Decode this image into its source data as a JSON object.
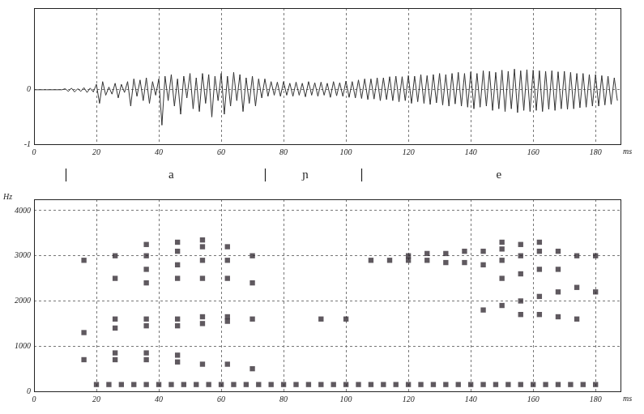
{
  "chart_data": [
    {
      "type": "line",
      "x": [
        0,
        1,
        2,
        3,
        4,
        5,
        6,
        7,
        8,
        9,
        10,
        11,
        12,
        13,
        14,
        15,
        16,
        17,
        18,
        19,
        20,
        21,
        22,
        23,
        24,
        25,
        26,
        27,
        28,
        29,
        30,
        31,
        32,
        33,
        34,
        35,
        36,
        37,
        38,
        39,
        40,
        41,
        42,
        43,
        44,
        45,
        46,
        47,
        48,
        49,
        50,
        51,
        52,
        53,
        54,
        55,
        56,
        57,
        58,
        59,
        60,
        61,
        62,
        63,
        64,
        65,
        66,
        67,
        68,
        69,
        70,
        71,
        72,
        73,
        74,
        75,
        76,
        77,
        78,
        79,
        80,
        81,
        82,
        83,
        84,
        85,
        86,
        87,
        88,
        89,
        90,
        91,
        92,
        93,
        94,
        95,
        96,
        97,
        98,
        99,
        100,
        101,
        102,
        103,
        104,
        105,
        106,
        107,
        108,
        109,
        110,
        111,
        112,
        113,
        114,
        115,
        116,
        117,
        118,
        119,
        120,
        121,
        122,
        123,
        124,
        125,
        126,
        127,
        128,
        129,
        130,
        131,
        132,
        133,
        134,
        135,
        136,
        137,
        138,
        139,
        140,
        141,
        142,
        143,
        144,
        145,
        146,
        147,
        148,
        149,
        150,
        151,
        152,
        153,
        154,
        155,
        156,
        157,
        158,
        159,
        160,
        161,
        162,
        163,
        164,
        165,
        166,
        167,
        168,
        169,
        170,
        171,
        172,
        173,
        174,
        175,
        176,
        177,
        178,
        179,
        180,
        181,
        182,
        183,
        184,
        185,
        186,
        187
      ],
      "values": [
        0,
        0,
        0,
        0,
        0,
        0,
        0,
        0,
        0,
        0,
        0.02,
        -0.03,
        0.03,
        -0.04,
        0.02,
        -0.03,
        0.04,
        -0.05,
        0.03,
        -0.04,
        0.1,
        -0.25,
        0.15,
        -0.1,
        0.05,
        -0.08,
        0.12,
        -0.15,
        0.1,
        -0.05,
        0.15,
        -0.3,
        0.2,
        -0.12,
        0.18,
        -0.2,
        0.22,
        -0.25,
        0.15,
        -0.1,
        0.2,
        -0.65,
        0.25,
        -0.2,
        0.28,
        -0.3,
        0.2,
        -0.45,
        0.25,
        -0.15,
        0.3,
        -0.35,
        0.22,
        -0.4,
        0.3,
        -0.25,
        0.28,
        -0.5,
        0.25,
        -0.2,
        0.3,
        -0.45,
        0.25,
        -0.3,
        0.32,
        -0.2,
        0.28,
        -0.4,
        0.22,
        -0.25,
        0.25,
        -0.3,
        0.2,
        -0.15,
        0.2,
        -0.12,
        0.15,
        -0.1,
        0.14,
        -0.12,
        0.15,
        -0.1,
        0.12,
        -0.12,
        0.14,
        -0.1,
        0.12,
        -0.13,
        0.15,
        -0.1,
        0.13,
        -0.12,
        0.14,
        -0.1,
        0.12,
        -0.14,
        0.15,
        -0.11,
        0.13,
        -0.12,
        0.16,
        -0.14,
        0.15,
        -0.15,
        0.18,
        -0.16,
        0.2,
        -0.18,
        0.2,
        -0.17,
        0.22,
        -0.2,
        0.22,
        -0.18,
        0.24,
        -0.2,
        0.25,
        -0.22,
        0.24,
        -0.2,
        0.26,
        -0.25,
        0.25,
        -0.22,
        0.28,
        -0.25,
        0.26,
        -0.27,
        0.28,
        -0.24,
        0.3,
        -0.28,
        0.28,
        -0.3,
        0.3,
        -0.26,
        0.32,
        -0.3,
        0.3,
        -0.32,
        0.33,
        -0.35,
        0.3,
        -0.32,
        0.35,
        -0.3,
        0.34,
        -0.38,
        0.32,
        -0.35,
        0.36,
        -0.4,
        0.34,
        -0.35,
        0.38,
        -0.42,
        0.35,
        -0.38,
        0.37,
        -0.4,
        0.36,
        -0.38,
        0.35,
        -0.4,
        0.34,
        -0.36,
        0.35,
        -0.38,
        0.33,
        -0.35,
        0.34,
        -0.36,
        0.32,
        -0.35,
        0.3,
        -0.33,
        0.3,
        -0.32,
        0.28,
        -0.3,
        0.28,
        -0.3,
        0.26,
        -0.28,
        0.25,
        -0.27,
        0.22,
        -0.2
      ],
      "color": "#333333",
      "xlim": [
        0,
        188
      ],
      "xticks": [
        0,
        20,
        40,
        60,
        80,
        100,
        120,
        140,
        160,
        180
      ],
      "ylim": [
        -1,
        1.5
      ],
      "yticks": [
        -1,
        0
      ],
      "xlabel": "ms",
      "grid": true,
      "segments": {
        "boundaries": [
          10,
          74,
          105
        ],
        "labels": [
          "a",
          "ɲ",
          "e"
        ],
        "label_x": [
          44,
          87,
          149
        ]
      }
    },
    {
      "type": "scatter",
      "x": [
        16,
        16,
        16,
        26,
        26,
        26,
        26,
        26,
        26,
        36,
        36,
        36,
        36,
        36,
        36,
        36,
        36,
        46,
        46,
        46,
        46,
        46,
        46,
        46,
        46,
        54,
        54,
        54,
        54,
        54,
        54,
        54,
        62,
        62,
        62,
        62,
        62,
        62,
        70,
        70,
        70,
        70,
        20,
        24,
        28,
        32,
        36,
        40,
        44,
        48,
        52,
        56,
        60,
        64,
        68,
        72,
        76,
        80,
        84,
        88,
        92,
        96,
        100,
        104,
        108,
        112,
        116,
        120,
        124,
        128,
        132,
        136,
        140,
        144,
        148,
        152,
        156,
        160,
        164,
        168,
        172,
        176,
        180,
        92,
        100,
        108,
        114,
        120,
        120,
        126,
        126,
        132,
        132,
        138,
        138,
        144,
        144,
        144,
        150,
        150,
        150,
        150,
        150,
        156,
        156,
        156,
        156,
        156,
        162,
        162,
        162,
        162,
        162,
        168,
        168,
        168,
        168,
        174,
        174,
        174,
        180,
        180
      ],
      "values": [
        700,
        1300,
        2900,
        700,
        850,
        1400,
        1600,
        2500,
        3000,
        700,
        850,
        1450,
        1600,
        2400,
        2700,
        3000,
        3250,
        650,
        800,
        1450,
        1600,
        2500,
        2800,
        3100,
        3300,
        600,
        1500,
        1650,
        2500,
        2900,
        3200,
        3350,
        600,
        1550,
        1650,
        2500,
        2900,
        3200,
        500,
        1600,
        2400,
        3000,
        150,
        150,
        150,
        150,
        150,
        150,
        150,
        150,
        150,
        150,
        150,
        150,
        150,
        150,
        150,
        150,
        150,
        150,
        150,
        150,
        150,
        150,
        150,
        150,
        150,
        150,
        150,
        150,
        150,
        150,
        150,
        150,
        150,
        150,
        150,
        150,
        150,
        150,
        150,
        150,
        150,
        1600,
        1600,
        2900,
        2900,
        2900,
        3000,
        2900,
        3050,
        2850,
        3050,
        2850,
        3100,
        1800,
        2800,
        3100,
        1900,
        2500,
        2900,
        3150,
        3300,
        1700,
        2000,
        2600,
        3000,
        3250,
        1700,
        2100,
        2700,
        3100,
        3300,
        1650,
        2200,
        2700,
        3100,
        1600,
        2300,
        3000,
        2200,
        3000
      ],
      "color": "#2a222a",
      "marker": "square",
      "xlim": [
        0,
        188
      ],
      "xticks": [
        0,
        20,
        40,
        60,
        80,
        100,
        120,
        140,
        160,
        180
      ],
      "ylim": [
        0,
        4250
      ],
      "yticks": [
        0,
        1000,
        2000,
        3000,
        4000
      ],
      "xlabel": "ms",
      "ylabel": "Hz",
      "grid": true
    }
  ]
}
